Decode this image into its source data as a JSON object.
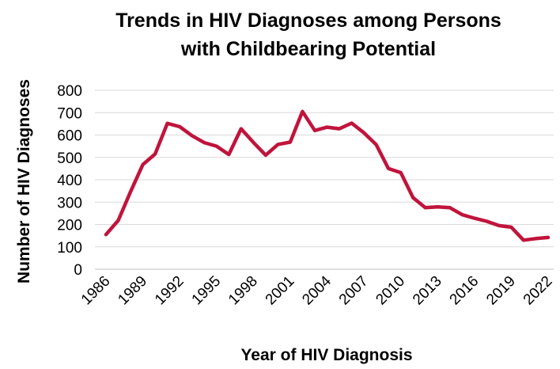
{
  "chart_data": {
    "type": "line",
    "title": [
      "Trends in HIV Diagnoses among Persons",
      "with Childbearing Potential"
    ],
    "xlabel": "Year of HIV Diagnosis",
    "ylabel": "Number of HIV Diagnoses",
    "ylim": [
      0,
      800
    ],
    "yticks": [
      "0",
      "100",
      "200",
      "300",
      "400",
      "500",
      "600",
      "700",
      "800"
    ],
    "xlim": [
      1986,
      2022
    ],
    "xticks": [
      "1986",
      "1989",
      "1992",
      "1995",
      "1998",
      "2001",
      "2004",
      "2007",
      "2010",
      "2013",
      "2016",
      "2019",
      "2022"
    ],
    "grid": true,
    "series": [
      {
        "color": "#C0143C",
        "x": [
          1986,
          1987,
          1988,
          1989,
          1990,
          1991,
          1992,
          1993,
          1994,
          1995,
          1996,
          1997,
          1998,
          1999,
          2000,
          2001,
          2002,
          2003,
          2004,
          2005,
          2006,
          2007,
          2008,
          2009,
          2010,
          2011,
          2012,
          2013,
          2014,
          2015,
          2016,
          2017,
          2018,
          2019,
          2020,
          2021,
          2022
        ],
        "values": [
          155,
          218,
          347,
          468,
          515,
          652,
          637,
          597,
          566,
          550,
          513,
          628,
          567,
          510,
          558,
          568,
          705,
          620,
          635,
          628,
          653,
          610,
          557,
          450,
          432,
          320,
          275,
          279,
          275,
          244,
          228,
          214,
          195,
          188,
          130,
          137,
          142
        ]
      }
    ]
  }
}
